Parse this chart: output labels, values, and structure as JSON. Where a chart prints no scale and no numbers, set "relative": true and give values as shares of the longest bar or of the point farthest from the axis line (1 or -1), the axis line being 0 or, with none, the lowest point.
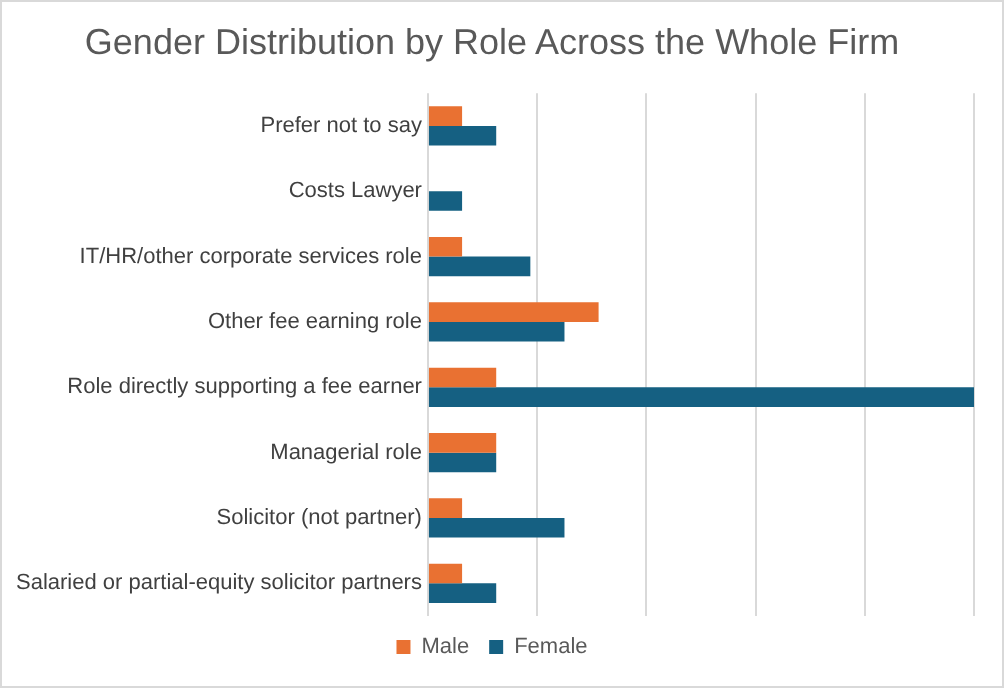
{
  "chart_data": {
    "type": "bar",
    "orientation": "horizontal",
    "relative": true,
    "title": "Gender Distribution by Role Across the Whole Firm",
    "categories": [
      "Prefer not to say",
      "Costs Lawyer",
      "IT/HR/other corporate services role",
      "Other fee earning role",
      "Role directly supporting a fee earner",
      "Managerial role",
      "Solicitor (not partner)",
      "Salaried or partial-equity solicitor partners"
    ],
    "series": [
      {
        "name": "Male",
        "color": "#e97132",
        "values": [
          0.0625,
          0,
          0.0625,
          0.3125,
          0.125,
          0.125,
          0.0625,
          0.0625
        ]
      },
      {
        "name": "Female",
        "color": "#156082",
        "values": [
          0.125,
          0.0625,
          0.1875,
          0.25,
          1,
          0.125,
          0.25,
          0.125
        ]
      }
    ],
    "grid": "x",
    "legend": "bottom"
  }
}
